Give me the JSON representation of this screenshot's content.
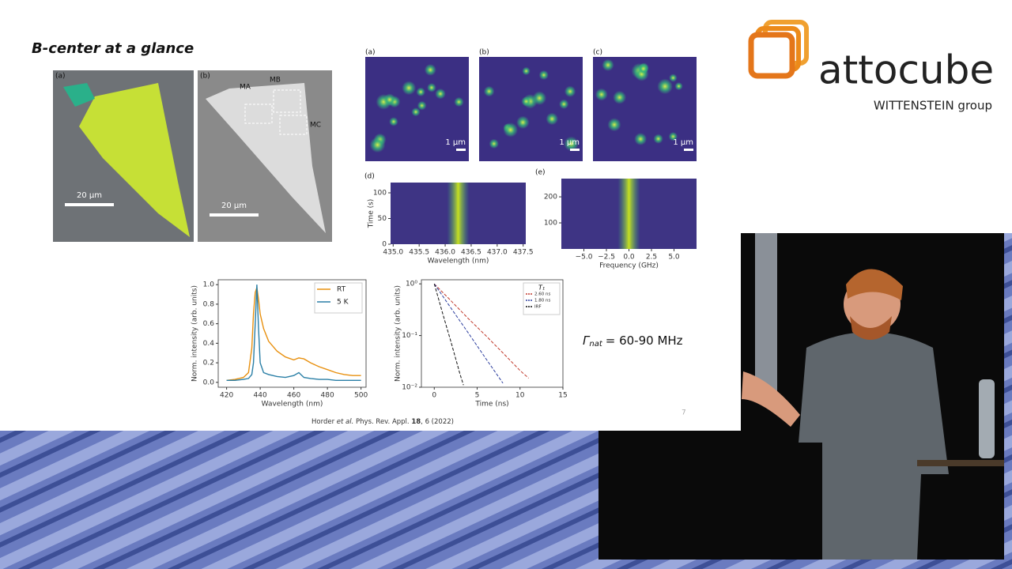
{
  "slide": {
    "title": "B-center at a glance",
    "page_number": "7",
    "citation": {
      "authors": "Horder",
      "etal": "et al.",
      "journal": "Phys. Rev. Appl.",
      "volume": "18",
      "issue": ", 6 (2022)"
    },
    "formula": {
      "symbol": "Γ",
      "subscript": "nat",
      "text": "= 60-90 MHz"
    },
    "images": [
      {
        "label": "(a)",
        "scale_bar": "20 µm"
      },
      {
        "label": "(b)",
        "scale_bar": "20 µm",
        "regions": [
          "MA",
          "MB",
          "MC"
        ]
      }
    ],
    "maps": [
      {
        "label": "(a)",
        "scale_bar": "1 µm"
      },
      {
        "label": "(b)",
        "scale_bar": "1 µm"
      },
      {
        "label": "(c)",
        "scale_bar": "1 µm"
      }
    ]
  },
  "logo": {
    "name": "attocube",
    "group": "WITTENSTEIN group"
  },
  "chart_data": [
    {
      "type": "heatmap",
      "label": "(d)",
      "xlabel": "Wavelength (nm)",
      "ylabel": "Time (s)",
      "xlim": [
        434.95,
        437.55
      ],
      "xticks": [
        {
          "value": 435,
          "label": "435.0"
        },
        {
          "value": 435.5,
          "label": "435.5"
        },
        {
          "value": 436,
          "label": "436.0"
        },
        {
          "value": 436.5,
          "label": "436.5"
        },
        {
          "value": 437,
          "label": "437.0"
        },
        {
          "value": 437.5,
          "label": "437.5"
        }
      ],
      "ylim": [
        0,
        120
      ],
      "yticks": [
        0,
        50,
        100
      ],
      "line_center": 436.25
    },
    {
      "type": "heatmap",
      "label": "(e)",
      "xlabel": "Frequency (GHz)",
      "xlim": [
        -7.5,
        7.5
      ],
      "xticks": [
        {
          "value": -5,
          "label": "−5.0"
        },
        {
          "value": -2.5,
          "label": "−2.5"
        },
        {
          "value": 0,
          "label": "0.0"
        },
        {
          "value": 2.5,
          "label": "2.5"
        },
        {
          "value": 5,
          "label": "5.0"
        }
      ],
      "ylim": [
        0,
        270
      ],
      "yticks": [
        100,
        200
      ],
      "line_center": 0
    },
    {
      "type": "line",
      "xlabel": "Wavelength (nm)",
      "ylabel": "Norm. intensity (arb. units)",
      "xlim": [
        415,
        503
      ],
      "xticks": [
        420,
        440,
        460,
        480,
        500
      ],
      "ylim": [
        -0.05,
        1.05
      ],
      "yticks": [
        {
          "value": 0,
          "label": "0.0"
        },
        {
          "value": 0.2,
          "label": "0.2"
        },
        {
          "value": 0.4,
          "label": "0.4"
        },
        {
          "value": 0.6,
          "label": "0.6"
        },
        {
          "value": 0.8,
          "label": "0.8"
        },
        {
          "value": 1,
          "label": "1.0"
        }
      ],
      "legend": "upper right",
      "x": [
        420,
        425,
        430,
        433,
        435,
        436,
        437,
        438,
        439,
        440,
        442,
        445,
        450,
        455,
        460,
        463,
        466,
        470,
        475,
        480,
        485,
        490,
        495,
        500
      ],
      "series": [
        {
          "name": "RT",
          "color": "#e8900f",
          "values": [
            0.02,
            0.03,
            0.05,
            0.1,
            0.35,
            0.7,
            0.92,
            0.97,
            0.85,
            0.7,
            0.55,
            0.42,
            0.32,
            0.26,
            0.23,
            0.25,
            0.24,
            0.2,
            0.16,
            0.13,
            0.1,
            0.08,
            0.07,
            0.07
          ]
        },
        {
          "name": "5 K",
          "color": "#2a7fa6",
          "values": [
            0.02,
            0.02,
            0.03,
            0.04,
            0.08,
            0.2,
            0.6,
            1.0,
            0.55,
            0.2,
            0.1,
            0.08,
            0.06,
            0.05,
            0.07,
            0.1,
            0.05,
            0.04,
            0.03,
            0.03,
            0.02,
            0.02,
            0.02,
            0.02
          ]
        }
      ]
    },
    {
      "type": "line",
      "xlabel": "Time (ns)",
      "ylabel": "Norm. intensity (arb. units)",
      "log_y": true,
      "xlim": [
        -1.5,
        15
      ],
      "xticks": [
        0,
        5,
        10,
        15
      ],
      "ylim": [
        0.01,
        1.2
      ],
      "yticks": [
        {
          "value": 1,
          "label": "10⁰"
        },
        {
          "value": 0.1,
          "label": "10⁻¹"
        },
        {
          "value": 0.01,
          "label": "10⁻²"
        }
      ],
      "legend": "upper right",
      "legend_title": "T₁",
      "series": [
        {
          "name": "2.60 ns",
          "color": "#c0392b",
          "dash": true,
          "x": [
            0,
            2,
            4,
            6,
            8,
            10,
            11
          ],
          "values": [
            1,
            0.46,
            0.21,
            0.1,
            0.046,
            0.021,
            0.015
          ]
        },
        {
          "name": "1.80 ns",
          "color": "#2c3e9e",
          "dash": true,
          "x": [
            0,
            2,
            4,
            6,
            8
          ],
          "values": [
            1,
            0.33,
            0.11,
            0.036,
            0.012
          ]
        },
        {
          "name": "IRF",
          "color": "#111111",
          "dash": true,
          "x": [
            0,
            1,
            2,
            3,
            3.4
          ],
          "values": [
            1,
            0.26,
            0.07,
            0.018,
            0.011
          ]
        }
      ]
    }
  ]
}
